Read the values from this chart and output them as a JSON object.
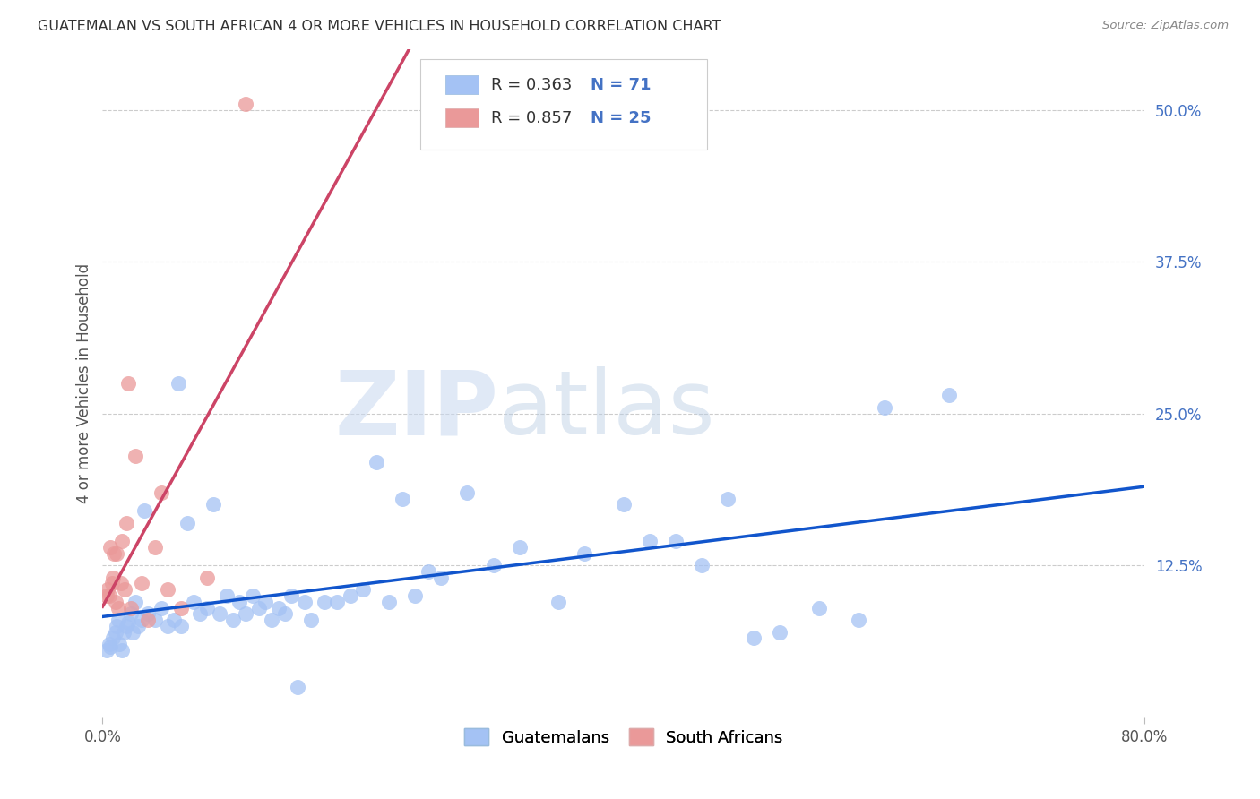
{
  "title": "GUATEMALAN VS SOUTH AFRICAN 4 OR MORE VEHICLES IN HOUSEHOLD CORRELATION CHART",
  "source": "Source: ZipAtlas.com",
  "ylabel": "4 or more Vehicles in Household",
  "R1": 0.363,
  "N1": 71,
  "R2": 0.857,
  "N2": 25,
  "color_blue": "#a4c2f4",
  "color_pink": "#ea9999",
  "color_line_blue": "#1155cc",
  "color_line_pink": "#cc4466",
  "watermark_zip": "ZIP",
  "watermark_atlas": "atlas",
  "legend_label1": "Guatemalans",
  "legend_label2": "South Africans",
  "xlim": [
    0,
    80
  ],
  "ylim": [
    0,
    55
  ],
  "xticks": [
    0,
    80
  ],
  "yticks": [
    0,
    12.5,
    25.0,
    37.5,
    50.0
  ],
  "blue_points": [
    [
      0.3,
      5.5
    ],
    [
      0.5,
      6.0
    ],
    [
      0.6,
      5.8
    ],
    [
      0.8,
      6.5
    ],
    [
      1.0,
      7.0
    ],
    [
      1.1,
      7.5
    ],
    [
      1.2,
      8.0
    ],
    [
      1.3,
      6.0
    ],
    [
      1.5,
      5.5
    ],
    [
      1.6,
      7.0
    ],
    [
      1.8,
      7.5
    ],
    [
      2.0,
      7.8
    ],
    [
      2.2,
      8.5
    ],
    [
      2.3,
      7.0
    ],
    [
      2.5,
      9.5
    ],
    [
      2.7,
      7.5
    ],
    [
      3.0,
      8.0
    ],
    [
      3.2,
      17.0
    ],
    [
      3.5,
      8.5
    ],
    [
      4.0,
      8.0
    ],
    [
      4.5,
      9.0
    ],
    [
      5.0,
      7.5
    ],
    [
      5.5,
      8.0
    ],
    [
      5.8,
      27.5
    ],
    [
      6.0,
      7.5
    ],
    [
      6.5,
      16.0
    ],
    [
      7.0,
      9.5
    ],
    [
      7.5,
      8.5
    ],
    [
      8.0,
      9.0
    ],
    [
      8.5,
      17.5
    ],
    [
      9.0,
      8.5
    ],
    [
      9.5,
      10.0
    ],
    [
      10.0,
      8.0
    ],
    [
      10.5,
      9.5
    ],
    [
      11.0,
      8.5
    ],
    [
      11.5,
      10.0
    ],
    [
      12.0,
      9.0
    ],
    [
      12.5,
      9.5
    ],
    [
      13.0,
      8.0
    ],
    [
      13.5,
      9.0
    ],
    [
      14.0,
      8.5
    ],
    [
      14.5,
      10.0
    ],
    [
      15.0,
      2.5
    ],
    [
      15.5,
      9.5
    ],
    [
      16.0,
      8.0
    ],
    [
      17.0,
      9.5
    ],
    [
      18.0,
      9.5
    ],
    [
      19.0,
      10.0
    ],
    [
      20.0,
      10.5
    ],
    [
      21.0,
      21.0
    ],
    [
      22.0,
      9.5
    ],
    [
      23.0,
      18.0
    ],
    [
      24.0,
      10.0
    ],
    [
      25.0,
      12.0
    ],
    [
      26.0,
      11.5
    ],
    [
      28.0,
      18.5
    ],
    [
      30.0,
      12.5
    ],
    [
      32.0,
      14.0
    ],
    [
      35.0,
      9.5
    ],
    [
      37.0,
      13.5
    ],
    [
      40.0,
      17.5
    ],
    [
      42.0,
      14.5
    ],
    [
      44.0,
      14.5
    ],
    [
      46.0,
      12.5
    ],
    [
      48.0,
      18.0
    ],
    [
      50.0,
      6.5
    ],
    [
      52.0,
      7.0
    ],
    [
      55.0,
      9.0
    ],
    [
      58.0,
      8.0
    ],
    [
      60.0,
      25.5
    ],
    [
      65.0,
      26.5
    ]
  ],
  "pink_points": [
    [
      0.3,
      10.0
    ],
    [
      0.4,
      10.5
    ],
    [
      0.5,
      10.0
    ],
    [
      0.6,
      14.0
    ],
    [
      0.7,
      11.0
    ],
    [
      0.8,
      11.5
    ],
    [
      0.9,
      13.5
    ],
    [
      1.0,
      9.5
    ],
    [
      1.1,
      13.5
    ],
    [
      1.2,
      9.0
    ],
    [
      1.4,
      11.0
    ],
    [
      1.5,
      14.5
    ],
    [
      1.7,
      10.5
    ],
    [
      1.8,
      16.0
    ],
    [
      2.0,
      27.5
    ],
    [
      2.2,
      9.0
    ],
    [
      2.5,
      21.5
    ],
    [
      3.0,
      11.0
    ],
    [
      3.5,
      8.0
    ],
    [
      4.0,
      14.0
    ],
    [
      4.5,
      18.5
    ],
    [
      5.0,
      10.5
    ],
    [
      6.0,
      9.0
    ],
    [
      8.0,
      11.5
    ],
    [
      11.0,
      50.5
    ]
  ]
}
